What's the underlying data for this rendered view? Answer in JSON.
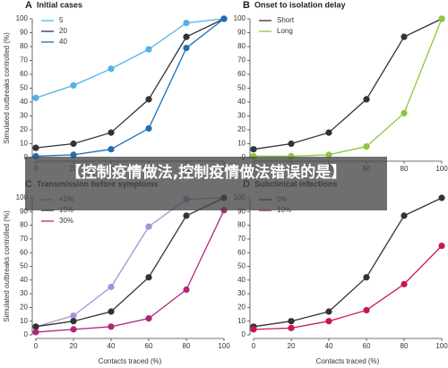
{
  "chart_data": [
    {
      "type": "line",
      "letter": "A",
      "title": "Initial cases",
      "ylabel": "Simulated outbreaks controlled (%)",
      "x": [
        0,
        20,
        40,
        60,
        80,
        100
      ],
      "xlim": [
        0,
        100
      ],
      "xticks": [
        0,
        20,
        40,
        60,
        80,
        100
      ],
      "ylim": [
        0,
        100
      ],
      "yticks": [
        0,
        10,
        20,
        30,
        40,
        50,
        60,
        70,
        80,
        90,
        100
      ],
      "series": [
        {
          "name": "5",
          "color": "#4fb3e8",
          "values": [
            43,
            52,
            64,
            78,
            97,
            100
          ]
        },
        {
          "name": "20",
          "color": "#333333",
          "values": [
            7,
            10,
            18,
            42,
            87,
            100
          ]
        },
        {
          "name": "40",
          "color": "#1f6fb4",
          "values": [
            1,
            2,
            6,
            21,
            79,
            100
          ]
        }
      ]
    },
    {
      "type": "line",
      "letter": "B",
      "title": "Onset to isolation delay",
      "x": [
        0,
        20,
        40,
        60,
        80,
        100
      ],
      "xlim": [
        0,
        100
      ],
      "xticks": [
        0,
        20,
        40,
        60,
        80,
        100
      ],
      "ylim": [
        0,
        100
      ],
      "yticks": [
        0,
        10,
        20,
        30,
        40,
        50,
        60,
        70,
        80,
        90,
        100
      ],
      "series": [
        {
          "name": "Short",
          "color": "#333333",
          "values": [
            6,
            10,
            18,
            42,
            87,
            100
          ]
        },
        {
          "name": "Long",
          "color": "#8cc63f",
          "values": [
            1,
            1,
            2,
            8,
            32,
            100
          ]
        }
      ]
    },
    {
      "type": "line",
      "letter": "C",
      "title": "Transmission before symptoms",
      "ylabel": "Simulated outbreaks controlled (%)",
      "xlabel": "Contacts traced (%)",
      "x": [
        0,
        20,
        40,
        60,
        80,
        100
      ],
      "xlim": [
        0,
        100
      ],
      "xticks": [
        0,
        20,
        40,
        60,
        80,
        100
      ],
      "ylim": [
        0,
        100
      ],
      "yticks": [
        0,
        10,
        20,
        30,
        40,
        50,
        60,
        70,
        80,
        90,
        100
      ],
      "series": [
        {
          "name": "<1%",
          "color": "#a98fd6",
          "values": [
            6,
            14,
            35,
            79,
            99,
            100
          ]
        },
        {
          "name": "15%",
          "color": "#333333",
          "values": [
            6,
            10,
            17,
            42,
            87,
            100
          ]
        },
        {
          "name": "30%",
          "color": "#b0267e",
          "values": [
            2,
            4,
            6,
            12,
            33,
            91
          ]
        }
      ]
    },
    {
      "type": "line",
      "letter": "D",
      "title": "Subclinical infections",
      "xlabel": "Contacts traced (%)",
      "x": [
        0,
        20,
        40,
        60,
        80,
        100
      ],
      "xlim": [
        0,
        100
      ],
      "xticks": [
        0,
        20,
        40,
        60,
        80,
        100
      ],
      "ylim": [
        0,
        100
      ],
      "yticks": [
        0,
        10,
        20,
        30,
        40,
        50,
        60,
        70,
        80,
        90,
        100
      ],
      "series": [
        {
          "name": "0%",
          "color": "#333333",
          "values": [
            6,
            10,
            17,
            42,
            87,
            100
          ]
        },
        {
          "name": "10%",
          "color": "#c8174e",
          "values": [
            4,
            5,
            10,
            18,
            37,
            65
          ]
        }
      ]
    }
  ],
  "overlay_text": "【控制疫情做法,控制疫情做法错误的是】"
}
